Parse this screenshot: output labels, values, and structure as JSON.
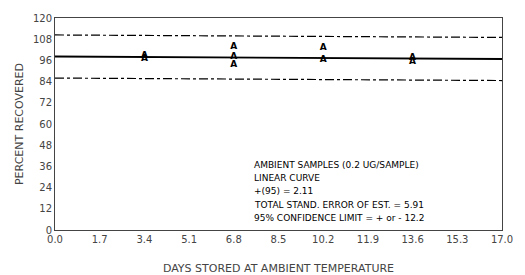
{
  "chart_data": {
    "type": "line",
    "xlabel": "DAYS STORED AT AMBIENT TEMPERATURE",
    "ylabel": "PERCENT RECOVERED",
    "xlim": [
      0.0,
      17.0
    ],
    "ylim": [
      0,
      120
    ],
    "xticks": [
      {
        "value": 0,
        "label": "0.0"
      },
      1.7,
      3.4,
      5.1,
      6.8,
      8.5,
      10.2,
      11.9,
      13.6,
      15.3,
      {
        "value": 17,
        "label": "17.0"
      }
    ],
    "yticks": [
      0,
      12,
      24,
      36,
      48,
      60,
      72,
      84,
      96,
      108,
      120
    ],
    "grid": false,
    "series": [
      {
        "type": "line",
        "line_style": "solid",
        "color": "#000000",
        "x": [
          0.0,
          17.0
        ],
        "values": [
          98.2,
          96.8
        ]
      },
      {
        "type": "line",
        "line_style": "dashdot",
        "color": "#000000",
        "x": [
          0.0,
          17.0
        ],
        "values": [
          110.4,
          109.0
        ]
      },
      {
        "type": "line",
        "line_style": "dashdot",
        "color": "#000000",
        "x": [
          0.0,
          17.0
        ],
        "values": [
          86.0,
          84.6
        ]
      },
      {
        "type": "scatter",
        "marker": "A",
        "color": "#000000",
        "x": [
          3.4,
          3.4,
          6.8,
          6.8,
          6.8,
          10.2,
          10.2,
          13.6,
          13.6
        ],
        "values": [
          97.0,
          98.5,
          93.5,
          98.2,
          103.5,
          96.5,
          103.0,
          95.0,
          97.5
        ]
      }
    ],
    "annotations": [
      "AMBIENT SAMPLES (0.2 UG/SAMPLE)",
      "LINEAR CURVE",
      "+(95) = 2.11",
      "TOTAL STAND. ERROR OF EST. = 5.91",
      "95% CONFIDENCE LIMIT = + or - 12.2"
    ]
  }
}
